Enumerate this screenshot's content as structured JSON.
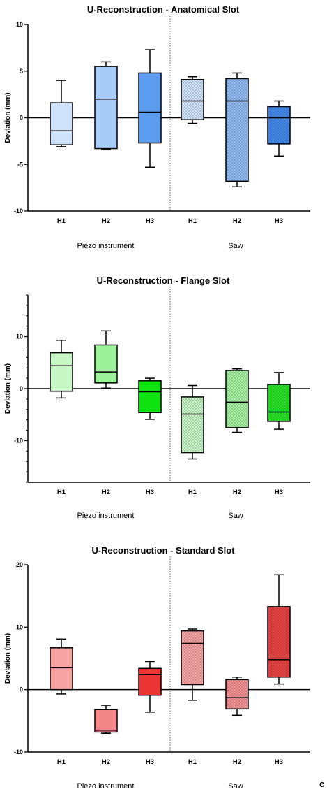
{
  "panel_letter": "c",
  "chart_data": [
    {
      "type": "box",
      "title": "U-Reconstruction - Anatomical  Slot",
      "ylabel": "Deviation (mm)",
      "ylim": [
        -10,
        10
      ],
      "yticks": [
        10,
        5,
        0,
        -5,
        -10
      ],
      "yticklabels": [
        "10",
        "5",
        "0",
        "-5",
        "-10"
      ],
      "categories": [
        "H1",
        "H2",
        "H3",
        "H1",
        "H2",
        "H3"
      ],
      "groups": [
        {
          "label": "Piezo instrument",
          "from": 0,
          "to": 2
        },
        {
          "label": "Saw",
          "from": 3,
          "to": 5
        }
      ],
      "boxes": [
        {
          "min": -3.1,
          "q1": -2.9,
          "median": -1.4,
          "q3": 1.6,
          "max": 4.0
        },
        {
          "min": -3.4,
          "q1": -3.3,
          "median": 2.0,
          "q3": 5.5,
          "max": 6.0
        },
        {
          "min": -5.3,
          "q1": -2.7,
          "median": 0.6,
          "q3": 4.8,
          "max": 7.3
        },
        {
          "min": -0.6,
          "q1": -0.2,
          "median": 1.8,
          "q3": 4.1,
          "max": 4.4
        },
        {
          "min": -7.4,
          "q1": -6.8,
          "median": 1.8,
          "q3": 4.2,
          "max": 4.8
        },
        {
          "min": -4.1,
          "q1": -2.8,
          "median": 0.0,
          "q3": 1.2,
          "max": 1.8
        }
      ],
      "colors": [
        "#cfe2fb",
        "#a9cbf7",
        "#5c9df0",
        "#cfe2fb",
        "#8fbbf5",
        "#3f88ec"
      ],
      "dotted": [
        false,
        false,
        false,
        true,
        true,
        true
      ]
    },
    {
      "type": "box",
      "title": "U-Reconstruction - Flange Slot",
      "ylabel": "Deviation (mm)",
      "ylim": [
        -18,
        18
      ],
      "yticks": [
        10,
        0,
        -10
      ],
      "yticklabels": [
        "10",
        "0",
        "-10"
      ],
      "minor_step": 2,
      "categories": [
        "H1",
        "H2",
        "H3",
        "H1",
        "H2",
        "H3"
      ],
      "groups": [
        {
          "label": "Piezo instrument",
          "from": 0,
          "to": 2
        },
        {
          "label": "Saw",
          "from": 3,
          "to": 5
        }
      ],
      "boxes": [
        {
          "min": -1.8,
          "q1": -0.5,
          "median": 4.4,
          "q3": 6.9,
          "max": 9.3
        },
        {
          "min": 0.1,
          "q1": 1.1,
          "median": 3.2,
          "q3": 8.4,
          "max": 11.1
        },
        {
          "min": -5.9,
          "q1": -4.6,
          "median": -0.6,
          "q3": 1.5,
          "max": 2.0
        },
        {
          "min": -13.5,
          "q1": -12.3,
          "median": -4.9,
          "q3": -1.6,
          "max": 0.6
        },
        {
          "min": -8.4,
          "q1": -7.5,
          "median": -2.6,
          "q3": 3.5,
          "max": 3.8
        },
        {
          "min": -7.8,
          "q1": -6.3,
          "median": -4.5,
          "q3": 0.8,
          "max": 3.1
        }
      ],
      "colors": [
        "#c8f7c6",
        "#9cf099",
        "#10e410",
        "#c8f7c6",
        "#a4f2a0",
        "#22e622"
      ],
      "dotted": [
        false,
        false,
        false,
        true,
        true,
        true
      ]
    },
    {
      "type": "box",
      "title": "U-Reconstruction - Standard Slot",
      "ylabel": "Deviation (mm)",
      "ylim": [
        -10,
        20
      ],
      "yticks": [
        20,
        10,
        0,
        -10
      ],
      "yticklabels": [
        "20",
        "10",
        "0",
        "-10"
      ],
      "categories": [
        "H1",
        "H2",
        "H3",
        "H1",
        "H2",
        "H3"
      ],
      "groups": [
        {
          "label": "Piezo instrument",
          "from": 0,
          "to": 2
        },
        {
          "label": "Saw",
          "from": 3,
          "to": 5
        }
      ],
      "boxes": [
        {
          "min": -0.7,
          "q1": 0.0,
          "median": 3.5,
          "q3": 6.7,
          "max": 8.1
        },
        {
          "min": -7.0,
          "q1": -6.8,
          "median": -6.5,
          "q3": -3.2,
          "max": -2.5
        },
        {
          "min": -3.6,
          "q1": -0.9,
          "median": 2.4,
          "q3": 3.4,
          "max": 4.5
        },
        {
          "min": -1.7,
          "q1": 0.8,
          "median": 7.4,
          "q3": 9.4,
          "max": 9.7
        },
        {
          "min": -4.1,
          "q1": -3.1,
          "median": -1.3,
          "q3": 1.6,
          "max": 2.0
        },
        {
          "min": 0.9,
          "q1": 2.0,
          "median": 4.8,
          "q3": 13.3,
          "max": 18.4
        }
      ],
      "colors": [
        "#f7a3a3",
        "#f28585",
        "#ec3535",
        "#f7a3a3",
        "#f49090",
        "#ec4040"
      ],
      "dotted": [
        false,
        false,
        false,
        true,
        true,
        true
      ]
    }
  ]
}
